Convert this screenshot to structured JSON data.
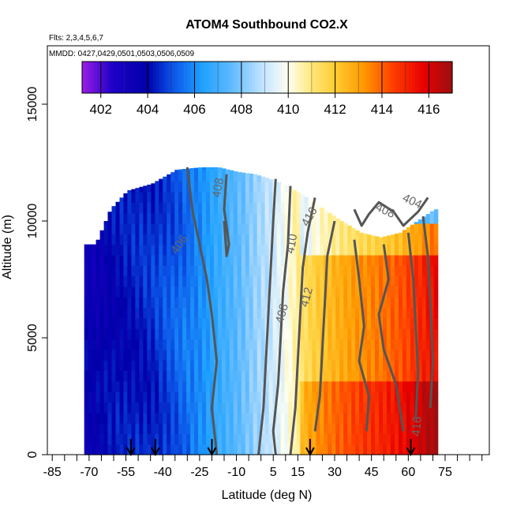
{
  "chart_data": {
    "type": "heatmap",
    "title": "ATOM4 Southbound CO2.X",
    "subtitle_flights": "Flts: 2,3,4,5,6,7",
    "subtitle_dates": "MMDD: 0427,0429,0501,0503,0506,0509",
    "xlabel": "Latitude (deg N)",
    "ylabel": "Altitude (m)",
    "xlim": [
      -87,
      93
    ],
    "ylim": [
      0,
      17500
    ],
    "x_ticks": [
      -85,
      -70,
      -55,
      -40,
      -25,
      -10,
      5,
      15,
      30,
      45,
      60,
      75
    ],
    "x_minor_ticks": [
      -85,
      -80,
      -75,
      -70,
      -65,
      -60,
      -55,
      -50,
      -45,
      -40,
      -35,
      -30,
      -25,
      -20,
      -15,
      -10,
      -5,
      0,
      5,
      10,
      15,
      20,
      25,
      30,
      35,
      40,
      45,
      50,
      55,
      60,
      65,
      70,
      75,
      80,
      85,
      90
    ],
    "y_ticks": [
      0,
      5000,
      10000,
      15000
    ],
    "colorbar": {
      "ticks": [
        402,
        404,
        406,
        408,
        410,
        412,
        414,
        416
      ],
      "range": [
        401.2,
        417
      ],
      "stops": [
        {
          "v": 401.2,
          "c": "#9b1ee6"
        },
        {
          "v": 402.5,
          "c": "#1e00c8"
        },
        {
          "v": 404,
          "c": "#0000a8"
        },
        {
          "v": 405,
          "c": "#0a50e6"
        },
        {
          "v": 406.3,
          "c": "#1ea0ff"
        },
        {
          "v": 407.5,
          "c": "#5ab8ff"
        },
        {
          "v": 409,
          "c": "#c8e6ff"
        },
        {
          "v": 410,
          "c": "#fffff0"
        },
        {
          "v": 411,
          "c": "#ffe87a"
        },
        {
          "v": 412,
          "c": "#ffcc33"
        },
        {
          "v": 413.2,
          "c": "#ff9a00"
        },
        {
          "v": 414.5,
          "c": "#ff3c00"
        },
        {
          "v": 415.8,
          "c": "#e60000"
        },
        {
          "v": 417,
          "c": "#9a1010"
        }
      ]
    },
    "field": {
      "description_values": "CO2 mixing ratio (ppm) by latitude and altitude",
      "profiles": [
        {
          "lat": -68,
          "top": 9000,
          "co2": 403.6
        },
        {
          "lat": -62,
          "top": 10500,
          "co2": 404.0
        },
        {
          "lat": -55,
          "top": 11300,
          "co2": 404.2
        },
        {
          "lat": -45,
          "top": 11600,
          "co2": 404.5
        },
        {
          "lat": -35,
          "top": 12200,
          "co2": 405.2
        },
        {
          "lat": -25,
          "top": 12300,
          "co2": 406.0
        },
        {
          "lat": -18,
          "top": 12300,
          "co2": 406.8
        },
        {
          "lat": -10,
          "top": 12100,
          "co2": 407.5
        },
        {
          "lat": -3,
          "top": 12000,
          "co2": 408.3
        },
        {
          "lat": 3,
          "top": 11800,
          "co2": 409.0
        },
        {
          "lat": 10,
          "top": 11500,
          "co2": 410.0
        },
        {
          "lat": 18,
          "top": 11000,
          "co2": 411.5
        },
        {
          "lat": 25,
          "top": 10500,
          "co2": 412.3
        },
        {
          "lat": 32,
          "top": 10000,
          "co2": 412.8
        },
        {
          "lat": 40,
          "top": 9500,
          "co2": 413.3
        },
        {
          "lat": 48,
          "top": 9300,
          "co2": 413.7
        },
        {
          "lat": 56,
          "top": 9500,
          "co2": 414.2
        },
        {
          "lat": 63,
          "top": 10000,
          "co2": 414.8
        },
        {
          "lat": 70,
          "top": 10500,
          "co2": 415.6
        }
      ]
    },
    "contour_labels": [
      {
        "text": "408",
        "lat": -16,
        "alt": 11400,
        "angle": -80
      },
      {
        "text": "406",
        "lat": -32,
        "alt": 8900,
        "angle": -55
      },
      {
        "text": "410",
        "lat": 14,
        "alt": 9000,
        "angle": -80
      },
      {
        "text": "412",
        "lat": 20,
        "alt": 6700,
        "angle": -75
      },
      {
        "text": "408",
        "lat": 10,
        "alt": 6000,
        "angle": -75
      },
      {
        "text": "416",
        "lat": 21,
        "alt": 10100,
        "angle": -60
      },
      {
        "text": "404",
        "lat": 61,
        "alt": 10700,
        "angle": 25
      },
      {
        "text": "408",
        "lat": 50,
        "alt": 10300,
        "angle": 25
      },
      {
        "text": "416",
        "lat": 65,
        "alt": 1200,
        "angle": -85
      }
    ],
    "flight_arrows": [
      -53,
      -43,
      -20,
      20,
      61
    ]
  }
}
